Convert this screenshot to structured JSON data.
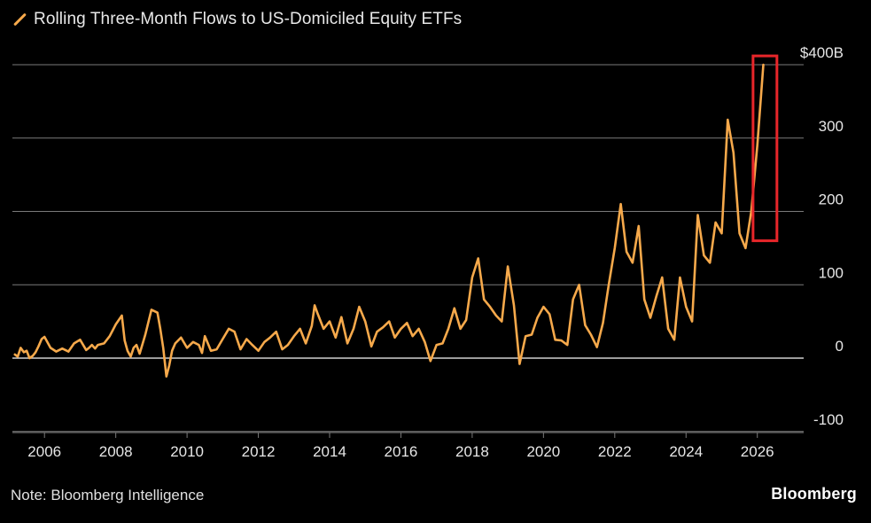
{
  "colors": {
    "background": "#000000",
    "line": "#f6a94b",
    "grid": "#7a7a7a",
    "zero": "#cfcfcf",
    "text": "#e6e6e6",
    "highlight": "#e8262a"
  },
  "legend_icon": "diagonal-line-icon",
  "chart_data": {
    "type": "line",
    "title": "Rolling Three-Month Flows to US-Domiciled Equity ETFs",
    "xlabel": "",
    "ylabel": "",
    "xlim": [
      2005.1,
      2027.3
    ],
    "ylim": [
      -100,
      400
    ],
    "ytick_values": [
      -100,
      0,
      100,
      200,
      300,
      400
    ],
    "ytick_labels": [
      "-100",
      "0",
      "100",
      "200",
      "300",
      "$400B"
    ],
    "xtick_values": [
      2006,
      2008,
      2010,
      2012,
      2014,
      2016,
      2018,
      2020,
      2022,
      2024,
      2026
    ],
    "xtick_labels": [
      "2006",
      "2008",
      "2010",
      "2012",
      "2014",
      "2016",
      "2018",
      "2020",
      "2022",
      "2024",
      "2026"
    ],
    "grid": true,
    "highlight_box": {
      "x_range": [
        2025.88,
        2026.55
      ],
      "y_range": [
        160,
        412
      ],
      "color": "#e8262a"
    },
    "series": [
      {
        "name": "Rolling Three-Month Flows to US-Domiciled Equity ETFs",
        "x": [
          2005.17,
          2005.25,
          2005.33,
          2005.42,
          2005.5,
          2005.58,
          2005.67,
          2005.75,
          2005.83,
          2005.92,
          2006.0,
          2006.17,
          2006.33,
          2006.5,
          2006.67,
          2006.83,
          2007.0,
          2007.17,
          2007.25,
          2007.33,
          2007.42,
          2007.5,
          2007.67,
          2007.83,
          2008.0,
          2008.17,
          2008.25,
          2008.33,
          2008.42,
          2008.5,
          2008.58,
          2008.67,
          2008.83,
          2009.0,
          2009.17,
          2009.25,
          2009.33,
          2009.42,
          2009.5,
          2009.58,
          2009.67,
          2009.83,
          2010.0,
          2010.17,
          2010.33,
          2010.42,
          2010.5,
          2010.67,
          2010.83,
          2011.0,
          2011.17,
          2011.33,
          2011.5,
          2011.67,
          2011.83,
          2012.0,
          2012.17,
          2012.33,
          2012.5,
          2012.67,
          2012.83,
          2013.0,
          2013.17,
          2013.33,
          2013.5,
          2013.58,
          2013.67,
          2013.83,
          2014.0,
          2014.17,
          2014.33,
          2014.5,
          2014.67,
          2014.83,
          2015.0,
          2015.17,
          2015.33,
          2015.5,
          2015.67,
          2015.83,
          2016.0,
          2016.17,
          2016.33,
          2016.5,
          2016.67,
          2016.83,
          2017.0,
          2017.17,
          2017.33,
          2017.5,
          2017.67,
          2017.83,
          2018.0,
          2018.17,
          2018.33,
          2018.5,
          2018.67,
          2018.83,
          2019.0,
          2019.17,
          2019.33,
          2019.5,
          2019.67,
          2019.83,
          2020.0,
          2020.17,
          2020.33,
          2020.5,
          2020.67,
          2020.83,
          2021.0,
          2021.17,
          2021.33,
          2021.5,
          2021.67,
          2021.83,
          2022.0,
          2022.17,
          2022.33,
          2022.5,
          2022.67,
          2022.83,
          2023.0,
          2023.17,
          2023.33,
          2023.5,
          2023.67,
          2023.83,
          2024.0,
          2024.17,
          2024.33,
          2024.5,
          2024.67,
          2024.83,
          2025.0,
          2025.17,
          2025.33,
          2025.5,
          2025.67,
          2025.83,
          2026.0,
          2026.17
        ],
        "values": [
          5,
          2,
          14,
          8,
          10,
          0,
          3,
          8,
          16,
          26,
          29,
          14,
          9,
          13,
          9,
          20,
          25,
          11,
          14,
          18,
          13,
          18,
          20,
          30,
          46,
          58,
          24,
          10,
          2,
          14,
          18,
          6,
          32,
          66,
          62,
          40,
          14,
          -25,
          -10,
          10,
          20,
          28,
          14,
          22,
          18,
          7,
          30,
          10,
          12,
          26,
          40,
          36,
          12,
          26,
          18,
          10,
          22,
          28,
          36,
          12,
          18,
          30,
          40,
          20,
          44,
          72,
          60,
          40,
          50,
          28,
          56,
          20,
          40,
          70,
          50,
          16,
          36,
          42,
          50,
          28,
          40,
          48,
          30,
          40,
          22,
          -4,
          18,
          20,
          40,
          68,
          40,
          52,
          110,
          136,
          80,
          70,
          58,
          50,
          125,
          72,
          -8,
          30,
          32,
          55,
          70,
          60,
          25,
          24,
          18,
          80,
          100,
          45,
          32,
          15,
          48,
          100,
          150,
          210,
          145,
          130,
          180,
          80,
          55,
          85,
          110,
          40,
          25,
          110,
          70,
          50,
          195,
          140,
          130,
          185,
          170,
          325,
          280,
          170,
          150,
          200,
          290,
          400
        ]
      }
    ]
  },
  "footer": {
    "note": "Note: Bloomberg Intelligence",
    "brand": "Bloomberg"
  }
}
